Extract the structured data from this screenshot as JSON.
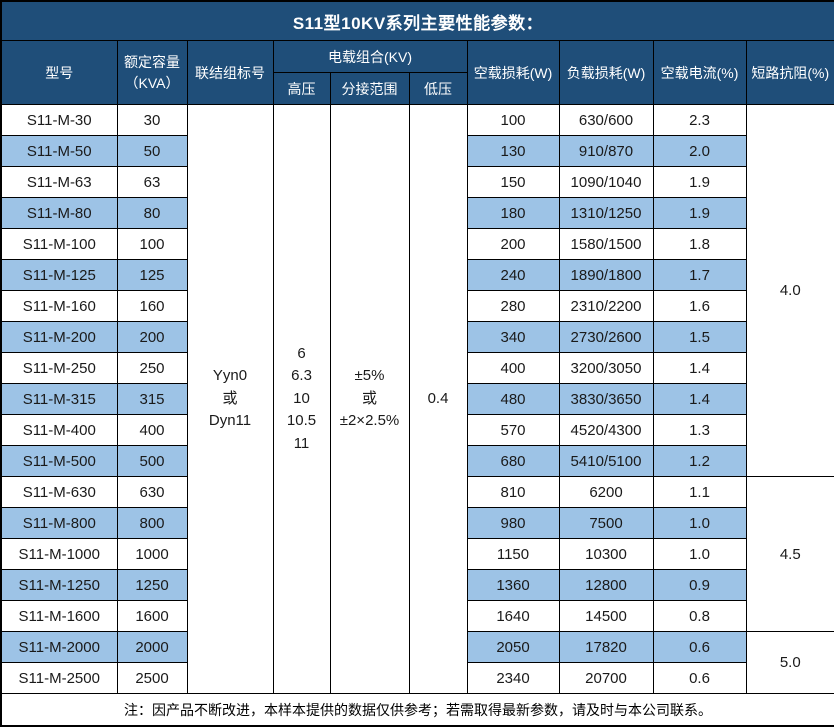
{
  "title": "S11型10KV系列主要性能参数：",
  "colors": {
    "header_bg": "#1F4E79",
    "stripe_bg": "#9DC3E6",
    "border": "#000000",
    "header_text": "#ffffff",
    "body_text": "#1a1a1a"
  },
  "table": {
    "headers": {
      "model": "型号",
      "capacity_line1": "额定容量",
      "capacity_line2": "（KVA）",
      "connection": "联结组标号",
      "voltage_group": "电载组合(KV)",
      "hv": "高压",
      "tap_range": "分接范围",
      "lv": "低压",
      "no_load_loss": "空载损耗(W)",
      "load_loss": "负载损耗(W)",
      "no_load_current": "空载电流(%)",
      "impedance": "短路抗阻(%)"
    },
    "merged": {
      "connection": "Yyn0\n或\nDyn11",
      "hv": "6\n6.3\n10\n10.5\n11",
      "tap_range": "±5%\n或\n±2×2.5%",
      "lv": "0.4"
    },
    "rows": [
      {
        "model": "S11-M-30",
        "capacity": "30",
        "no_load_loss": "100",
        "load_loss": "630/600",
        "no_load_current": "2.3"
      },
      {
        "model": "S11-M-50",
        "capacity": "50",
        "no_load_loss": "130",
        "load_loss": "910/870",
        "no_load_current": "2.0"
      },
      {
        "model": "S11-M-63",
        "capacity": "63",
        "no_load_loss": "150",
        "load_loss": "1090/1040",
        "no_load_current": "1.9"
      },
      {
        "model": "S11-M-80",
        "capacity": "80",
        "no_load_loss": "180",
        "load_loss": "1310/1250",
        "no_load_current": "1.9"
      },
      {
        "model": "S11-M-100",
        "capacity": "100",
        "no_load_loss": "200",
        "load_loss": "1580/1500",
        "no_load_current": "1.8"
      },
      {
        "model": "S11-M-125",
        "capacity": "125",
        "no_load_loss": "240",
        "load_loss": "1890/1800",
        "no_load_current": "1.7"
      },
      {
        "model": "S11-M-160",
        "capacity": "160",
        "no_load_loss": "280",
        "load_loss": "2310/2200",
        "no_load_current": "1.6"
      },
      {
        "model": "S11-M-200",
        "capacity": "200",
        "no_load_loss": "340",
        "load_loss": "2730/2600",
        "no_load_current": "1.5"
      },
      {
        "model": "S11-M-250",
        "capacity": "250",
        "no_load_loss": "400",
        "load_loss": "3200/3050",
        "no_load_current": "1.4"
      },
      {
        "model": "S11-M-315",
        "capacity": "315",
        "no_load_loss": "480",
        "load_loss": "3830/3650",
        "no_load_current": "1.4"
      },
      {
        "model": "S11-M-400",
        "capacity": "400",
        "no_load_loss": "570",
        "load_loss": "4520/4300",
        "no_load_current": "1.3"
      },
      {
        "model": "S11-M-500",
        "capacity": "500",
        "no_load_loss": "680",
        "load_loss": "5410/5100",
        "no_load_current": "1.2"
      },
      {
        "model": "S11-M-630",
        "capacity": "630",
        "no_load_loss": "810",
        "load_loss": "6200",
        "no_load_current": "1.1"
      },
      {
        "model": "S11-M-800",
        "capacity": "800",
        "no_load_loss": "980",
        "load_loss": "7500",
        "no_load_current": "1.0"
      },
      {
        "model": "S11-M-1000",
        "capacity": "1000",
        "no_load_loss": "1150",
        "load_loss": "10300",
        "no_load_current": "1.0"
      },
      {
        "model": "S11-M-1250",
        "capacity": "1250",
        "no_load_loss": "1360",
        "load_loss": "12800",
        "no_load_current": "0.9"
      },
      {
        "model": "S11-M-1600",
        "capacity": "1600",
        "no_load_loss": "1640",
        "load_loss": "14500",
        "no_load_current": "0.8"
      },
      {
        "model": "S11-M-2000",
        "capacity": "2000",
        "no_load_loss": "2050",
        "load_loss": "17820",
        "no_load_current": "0.6"
      },
      {
        "model": "S11-M-2500",
        "capacity": "2500",
        "no_load_loss": "2340",
        "load_loss": "20700",
        "no_load_current": "0.6"
      }
    ],
    "impedance_groups": [
      {
        "value": "4.0",
        "row_span": 12
      },
      {
        "value": "4.5",
        "row_span": 5
      },
      {
        "value": "5.0",
        "row_span": 2
      }
    ]
  },
  "footer_note": "注：因产品不断改进，本样本提供的数据仅供参考；若需取得最新参数，请及时与本公司联系。"
}
